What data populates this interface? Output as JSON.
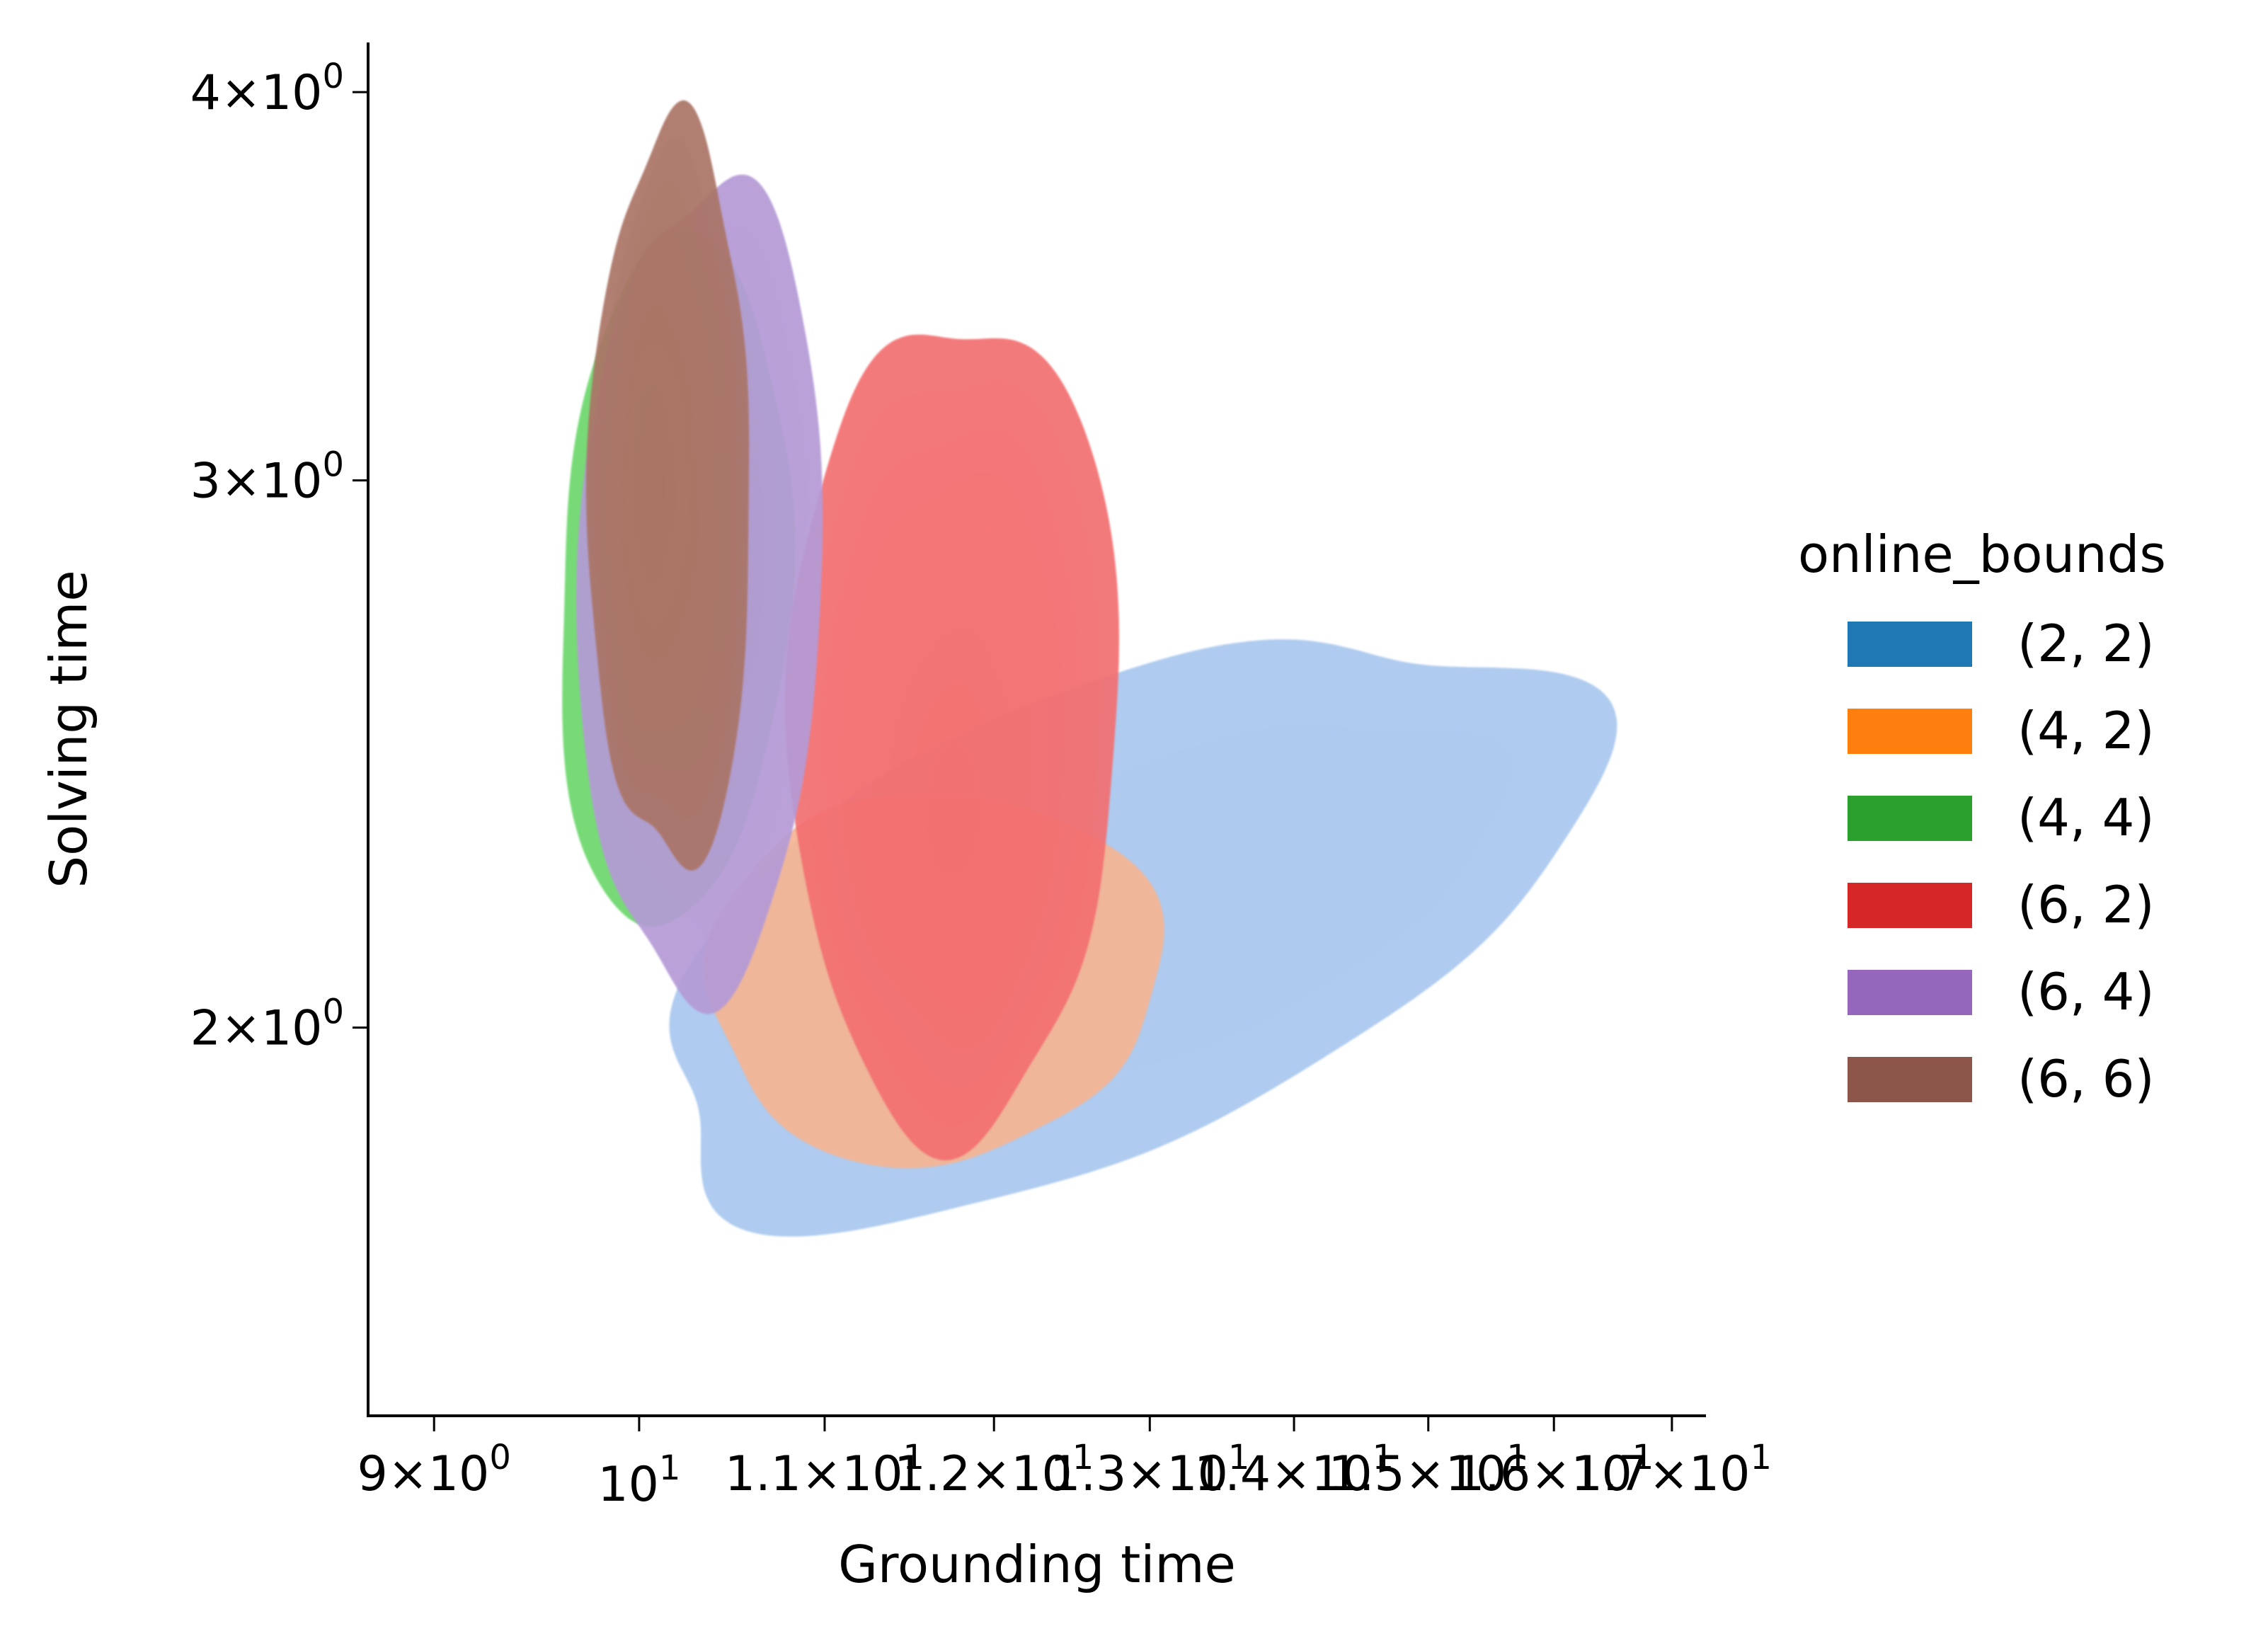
{
  "chart_data": {
    "type": "kde-contour",
    "xlabel": "Grounding time",
    "ylabel": "Solving time",
    "xscale": "log",
    "yscale": "log",
    "xlim": [
      8.7,
      17.3
    ],
    "ylim": [
      1.5,
      4.15
    ],
    "grid": false,
    "x_ticks": [
      {
        "value": 9,
        "mantissa": "9",
        "exponent": "0"
      },
      {
        "value": 10,
        "mantissa": "",
        "exponent": "1"
      },
      {
        "value": 11,
        "mantissa": "1.1",
        "exponent": "1"
      },
      {
        "value": 12,
        "mantissa": "1.2",
        "exponent": "1"
      },
      {
        "value": 13,
        "mantissa": "1.3",
        "exponent": "1"
      },
      {
        "value": 14,
        "mantissa": "1.4",
        "exponent": "1"
      },
      {
        "value": 15,
        "mantissa": "1.5",
        "exponent": "1"
      },
      {
        "value": 16,
        "mantissa": "1.6",
        "exponent": "1"
      },
      {
        "value": 17,
        "mantissa": "1.7",
        "exponent": "1"
      }
    ],
    "y_ticks": [
      {
        "value": 2,
        "mantissa": "2",
        "exponent": "0"
      },
      {
        "value": 3,
        "mantissa": "3",
        "exponent": "0"
      },
      {
        "value": 4,
        "mantissa": "4",
        "exponent": "0"
      }
    ],
    "legend": {
      "title": "online_bounds",
      "placement": "right-outside",
      "entries": [
        {
          "label": "(2, 2)",
          "color": "#1f77b4"
        },
        {
          "label": "(4, 2)",
          "color": "#ff7f0e"
        },
        {
          "label": "(4, 4)",
          "color": "#2ca02c"
        },
        {
          "label": "(6, 2)",
          "color": "#d62728"
        },
        {
          "label": "(6, 4)",
          "color": "#9467bd"
        },
        {
          "label": "(6, 6)",
          "color": "#8c564b"
        }
      ]
    },
    "series": [
      {
        "name": "(2, 2)",
        "color": "#a8c7ee",
        "center": [
          14.0,
          2.25
        ],
        "outer_extent_x": [
          10.0,
          16.3
        ],
        "outer_extent_y": [
          1.72,
          2.72
        ],
        "levels": 2
      },
      {
        "name": "(4, 2)",
        "color": "#f4b493",
        "center": [
          11.6,
          2.05
        ],
        "outer_extent_x": [
          10.4,
          13.0
        ],
        "outer_extent_y": [
          1.8,
          2.4
        ],
        "levels": 1
      },
      {
        "name": "(4, 4)",
        "color": "#6bd76b",
        "center": [
          10.2,
          2.65
        ],
        "outer_extent_x": [
          9.6,
          10.8
        ],
        "outer_extent_y": [
          2.15,
          3.6
        ],
        "levels": 1
      },
      {
        "name": "(6, 2)",
        "color": "#f26f70",
        "center": [
          11.75,
          2.33
        ],
        "outer_extent_x": [
          10.8,
          12.8
        ],
        "outer_extent_y": [
          1.85,
          3.4
        ],
        "levels": 9
      },
      {
        "name": "(6, 4)",
        "color": "#b49ad6",
        "center": [
          10.45,
          2.85
        ],
        "outer_extent_x": [
          9.7,
          11.0
        ],
        "outer_extent_y": [
          2.05,
          3.75
        ],
        "levels": 6
      },
      {
        "name": "(6, 6)",
        "color": "#a97466",
        "center": [
          10.05,
          3.0
        ],
        "outer_extent_x": [
          9.75,
          10.6
        ],
        "outer_extent_y": [
          2.25,
          3.9
        ],
        "levels": 9
      }
    ]
  }
}
